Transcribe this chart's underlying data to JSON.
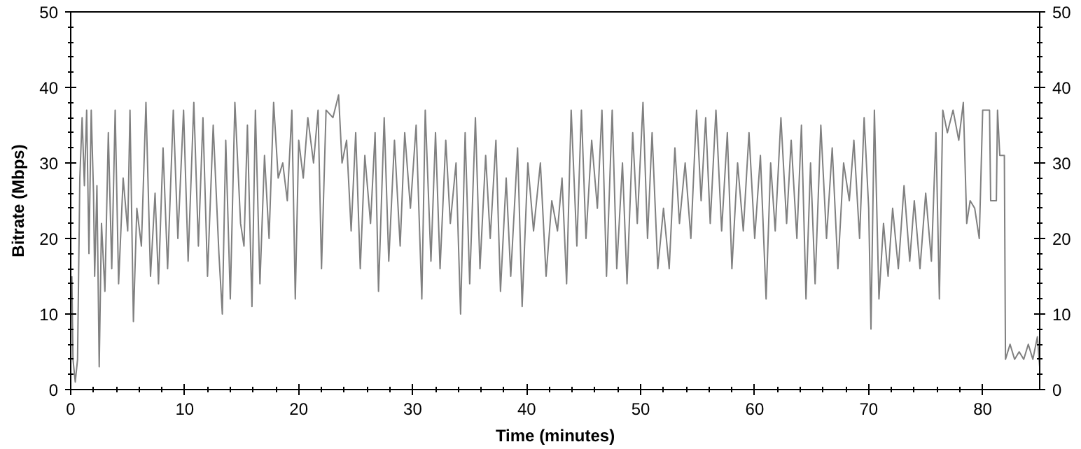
{
  "chart_data": {
    "type": "line",
    "xlabel": "Time (minutes)",
    "ylabel": "Bitrate (Mbps)",
    "xlim": [
      0,
      85
    ],
    "xticks": [
      0,
      10,
      20,
      30,
      40,
      50,
      60,
      70,
      80
    ],
    "ylim": [
      0,
      50
    ],
    "yticks": [
      0,
      10,
      20,
      30,
      40,
      50
    ],
    "y2lim": [
      0,
      50
    ],
    "y2ticks": [
      0,
      10,
      20,
      30,
      40,
      50
    ],
    "marker": "none",
    "line_style": "solid",
    "series": [
      {
        "color": "#808080",
        "x": [
          0.1,
          0.2,
          0.4,
          0.6,
          0.8,
          1.0,
          1.2,
          1.4,
          1.6,
          1.8,
          2.0,
          2.1,
          2.3,
          2.5,
          2.7,
          3.0,
          3.3,
          3.6,
          3.9,
          4.2,
          4.6,
          5.0,
          5.2,
          5.5,
          5.8,
          6.2,
          6.6,
          7.0,
          7.4,
          7.7,
          8.1,
          8.5,
          9.0,
          9.4,
          9.9,
          10.3,
          10.8,
          11.2,
          11.6,
          12.0,
          12.5,
          13.0,
          13.3,
          13.6,
          14.0,
          14.4,
          14.9,
          15.2,
          15.5,
          15.9,
          16.2,
          16.6,
          17.0,
          17.4,
          17.8,
          18.2,
          18.6,
          19.0,
          19.4,
          19.7,
          20.0,
          20.4,
          20.8,
          21.3,
          21.7,
          22.0,
          22.4,
          23.0,
          23.5,
          23.8,
          24.2,
          24.6,
          25.0,
          25.4,
          25.8,
          26.3,
          26.7,
          27.0,
          27.5,
          27.9,
          28.4,
          28.9,
          29.3,
          29.8,
          30.3,
          30.8,
          31.1,
          31.6,
          32.0,
          32.4,
          32.9,
          33.3,
          33.8,
          34.2,
          34.6,
          35.0,
          35.5,
          35.9,
          36.4,
          36.8,
          37.3,
          37.7,
          38.2,
          38.6,
          39.2,
          39.6,
          40.1,
          40.6,
          41.2,
          41.7,
          42.2,
          42.7,
          43.1,
          43.5,
          43.9,
          44.4,
          44.8,
          45.2,
          45.7,
          46.2,
          46.6,
          47.0,
          47.5,
          47.9,
          48.4,
          48.8,
          49.3,
          49.7,
          50.2,
          50.6,
          51.0,
          51.5,
          52.0,
          52.5,
          53.0,
          53.4,
          53.9,
          54.4,
          54.9,
          55.3,
          55.7,
          56.1,
          56.6,
          57.1,
          57.6,
          58.0,
          58.5,
          59.0,
          59.5,
          60.0,
          60.5,
          61.0,
          61.4,
          61.8,
          62.3,
          62.8,
          63.2,
          63.7,
          64.1,
          64.5,
          64.9,
          65.3,
          65.8,
          66.3,
          66.8,
          67.3,
          67.8,
          68.3,
          68.7,
          69.2,
          69.6,
          70.0,
          70.2,
          70.5,
          70.9,
          71.3,
          71.7,
          72.1,
          72.6,
          73.1,
          73.6,
          74.0,
          74.5,
          75.0,
          75.5,
          75.9,
          76.2,
          76.5,
          76.9,
          77.4,
          77.9,
          78.3,
          78.6,
          78.9,
          79.3,
          79.7,
          80.0,
          80.6,
          80.7,
          81.2,
          81.3,
          81.5,
          81.9,
          82.0,
          82.4,
          82.8,
          83.2,
          83.6,
          84.0,
          84.4,
          84.8,
          85
        ],
        "values": [
          15,
          4,
          1,
          4,
          28,
          36,
          27,
          37,
          18,
          37,
          26,
          15,
          27,
          3,
          22,
          13,
          34,
          16,
          37,
          14,
          28,
          21,
          37,
          9,
          24,
          19,
          38,
          15,
          26,
          14,
          32,
          16,
          37,
          20,
          37,
          17,
          38,
          19,
          36,
          15,
          35,
          18,
          10,
          33,
          12,
          38,
          22,
          19,
          35,
          11,
          37,
          14,
          31,
          20,
          38,
          28,
          30,
          25,
          37,
          12,
          33,
          28,
          36,
          30,
          37,
          16,
          37,
          36,
          39,
          30,
          33,
          21,
          34,
          16,
          31,
          22,
          34,
          13,
          36,
          17,
          33,
          19,
          34,
          24,
          35,
          12,
          37,
          17,
          34,
          16,
          33,
          22,
          30,
          10,
          34,
          14,
          36,
          16,
          31,
          20,
          33,
          13,
          28,
          15,
          32,
          11,
          30,
          21,
          30,
          15,
          25,
          21,
          28,
          14,
          37,
          19,
          37,
          20,
          33,
          24,
          37,
          15,
          37,
          16,
          30,
          14,
          34,
          22,
          38,
          20,
          34,
          16,
          24,
          16,
          32,
          22,
          30,
          20,
          37,
          25,
          36,
          22,
          37,
          21,
          34,
          16,
          30,
          21,
          34,
          20,
          31,
          12,
          30,
          21,
          36,
          22,
          33,
          20,
          35,
          12,
          30,
          14,
          35,
          20,
          32,
          16,
          30,
          25,
          33,
          20,
          36,
          24,
          8,
          37,
          12,
          22,
          15,
          24,
          16,
          27,
          17,
          25,
          16,
          26,
          17,
          34,
          12,
          37,
          34,
          37,
          33,
          38,
          22,
          25,
          24,
          20,
          37,
          37,
          25,
          25,
          37,
          31,
          31,
          4,
          6,
          4,
          5,
          4,
          6,
          4,
          7,
          3
        ]
      }
    ]
  }
}
